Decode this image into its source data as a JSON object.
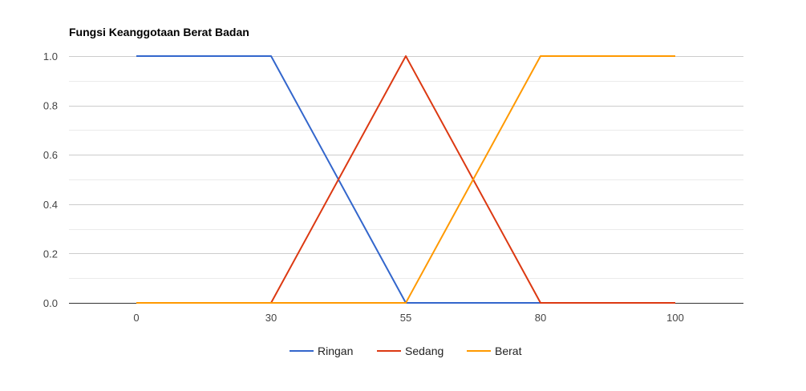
{
  "chart_data": {
    "type": "line",
    "title": "Fungsi Keanggotaan Berat Badan",
    "xlabel": "",
    "ylabel": "",
    "categories": [
      "0",
      "30",
      "55",
      "80",
      "100"
    ],
    "ylim": [
      0,
      1
    ],
    "y_ticks": [
      "0.0",
      "0.2",
      "0.4",
      "0.6",
      "0.8",
      "1.0"
    ],
    "grid": true,
    "legend_position": "bottom",
    "series": [
      {
        "name": "Ringan",
        "color": "#3366cc",
        "values": [
          1,
          1,
          0,
          0,
          0
        ]
      },
      {
        "name": "Sedang",
        "color": "#dc3912",
        "values": [
          0,
          0,
          1,
          0,
          0
        ]
      },
      {
        "name": "Berat",
        "color": "#ff9900",
        "values": [
          0,
          0,
          0,
          1,
          1
        ]
      }
    ]
  }
}
